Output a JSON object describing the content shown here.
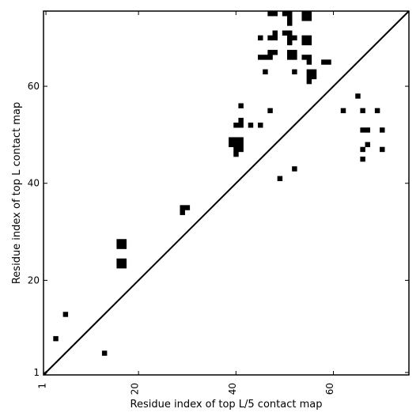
{
  "chart_data": {
    "type": "heatmap",
    "title": "",
    "xlabel": "Residue index of top L/5 contact map",
    "ylabel": "Residue index of top L contact map",
    "xlim": [
      0.5,
      75.5
    ],
    "ylim": [
      0.5,
      75.5
    ],
    "x_ticks": [
      1,
      20,
      40,
      60
    ],
    "y_ticks": [
      1,
      20,
      40,
      60
    ],
    "grid": false,
    "diagonal_line": true,
    "cell_color": "#000000",
    "background_color": "#ffffff",
    "cells": [
      {
        "x": 3,
        "y": 8
      },
      {
        "x": 5,
        "y": 13
      },
      {
        "x": 13,
        "y": 5
      },
      {
        "x": 16,
        "y": 23
      },
      {
        "x": 17,
        "y": 23
      },
      {
        "x": 16,
        "y": 24
      },
      {
        "x": 17,
        "y": 24
      },
      {
        "x": 16,
        "y": 27
      },
      {
        "x": 17,
        "y": 27
      },
      {
        "x": 16,
        "y": 28
      },
      {
        "x": 17,
        "y": 28
      },
      {
        "x": 29,
        "y": 34
      },
      {
        "x": 29,
        "y": 35
      },
      {
        "x": 30,
        "y": 35
      },
      {
        "x": 39,
        "y": 48
      },
      {
        "x": 40,
        "y": 48
      },
      {
        "x": 41,
        "y": 48
      },
      {
        "x": 39,
        "y": 49
      },
      {
        "x": 40,
        "y": 49
      },
      {
        "x": 41,
        "y": 49
      },
      {
        "x": 40,
        "y": 47
      },
      {
        "x": 41,
        "y": 47
      },
      {
        "x": 40,
        "y": 46
      },
      {
        "x": 40,
        "y": 52
      },
      {
        "x": 41,
        "y": 52
      },
      {
        "x": 41,
        "y": 53
      },
      {
        "x": 41,
        "y": 56
      },
      {
        "x": 43,
        "y": 52
      },
      {
        "x": 45,
        "y": 52
      },
      {
        "x": 47,
        "y": 55
      },
      {
        "x": 49,
        "y": 41
      },
      {
        "x": 52,
        "y": 43
      },
      {
        "x": 62,
        "y": 55
      },
      {
        "x": 65,
        "y": 58
      },
      {
        "x": 66,
        "y": 55
      },
      {
        "x": 66,
        "y": 51
      },
      {
        "x": 67,
        "y": 51
      },
      {
        "x": 69,
        "y": 55
      },
      {
        "x": 70,
        "y": 51
      },
      {
        "x": 67,
        "y": 48
      },
      {
        "x": 66,
        "y": 47
      },
      {
        "x": 70,
        "y": 47
      },
      {
        "x": 66,
        "y": 45
      },
      {
        "x": 47,
        "y": 75
      },
      {
        "x": 48,
        "y": 75
      },
      {
        "x": 50,
        "y": 75
      },
      {
        "x": 51,
        "y": 75
      },
      {
        "x": 54,
        "y": 75
      },
      {
        "x": 55,
        "y": 75
      },
      {
        "x": 54,
        "y": 74
      },
      {
        "x": 55,
        "y": 74
      },
      {
        "x": 51,
        "y": 74
      },
      {
        "x": 51,
        "y": 73
      },
      {
        "x": 45,
        "y": 70
      },
      {
        "x": 47,
        "y": 70
      },
      {
        "x": 48,
        "y": 70
      },
      {
        "x": 48,
        "y": 71
      },
      {
        "x": 50,
        "y": 71
      },
      {
        "x": 51,
        "y": 71
      },
      {
        "x": 51,
        "y": 70
      },
      {
        "x": 52,
        "y": 70
      },
      {
        "x": 51,
        "y": 69
      },
      {
        "x": 54,
        "y": 70
      },
      {
        "x": 55,
        "y": 70
      },
      {
        "x": 54,
        "y": 69
      },
      {
        "x": 55,
        "y": 69
      },
      {
        "x": 45,
        "y": 66
      },
      {
        "x": 46,
        "y": 66
      },
      {
        "x": 47,
        "y": 66
      },
      {
        "x": 47,
        "y": 67
      },
      {
        "x": 48,
        "y": 67
      },
      {
        "x": 51,
        "y": 67
      },
      {
        "x": 52,
        "y": 67
      },
      {
        "x": 51,
        "y": 66
      },
      {
        "x": 52,
        "y": 66
      },
      {
        "x": 54,
        "y": 66
      },
      {
        "x": 55,
        "y": 66
      },
      {
        "x": 55,
        "y": 65
      },
      {
        "x": 58,
        "y": 65
      },
      {
        "x": 59,
        "y": 65
      },
      {
        "x": 46,
        "y": 63
      },
      {
        "x": 52,
        "y": 63
      },
      {
        "x": 55,
        "y": 63
      },
      {
        "x": 56,
        "y": 63
      },
      {
        "x": 55,
        "y": 62
      },
      {
        "x": 56,
        "y": 62
      },
      {
        "x": 55,
        "y": 61
      }
    ]
  }
}
